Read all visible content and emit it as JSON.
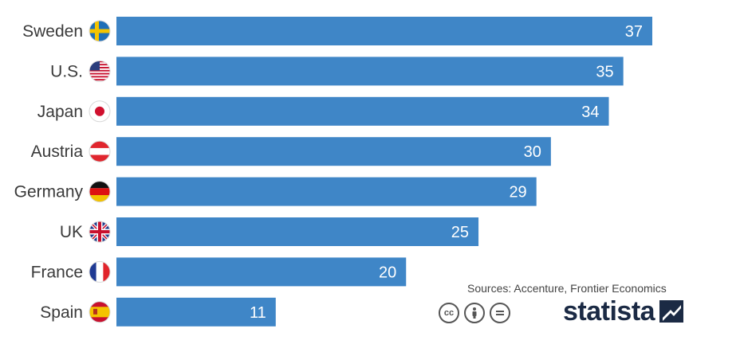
{
  "chart_data": {
    "type": "bar",
    "orientation": "horizontal",
    "categories": [
      "Sweden",
      "U.S.",
      "Japan",
      "Austria",
      "Germany",
      "UK",
      "France",
      "Spain"
    ],
    "values": [
      37,
      35,
      34,
      30,
      29,
      25,
      20,
      11
    ],
    "xlim": [
      0,
      37
    ],
    "grid": false,
    "bar_color": "#3f86c7",
    "flag_icons": [
      "sweden-flag-icon",
      "us-flag-icon",
      "japan-flag-icon",
      "austria-flag-icon",
      "germany-flag-icon",
      "uk-flag-icon",
      "france-flag-icon",
      "spain-flag-icon"
    ]
  },
  "footer": {
    "source": "Sources: Accenture, Frontier Economics",
    "brand": "statista",
    "license_icons": [
      "cc-icon",
      "attribution-icon",
      "no-derivatives-icon"
    ]
  }
}
